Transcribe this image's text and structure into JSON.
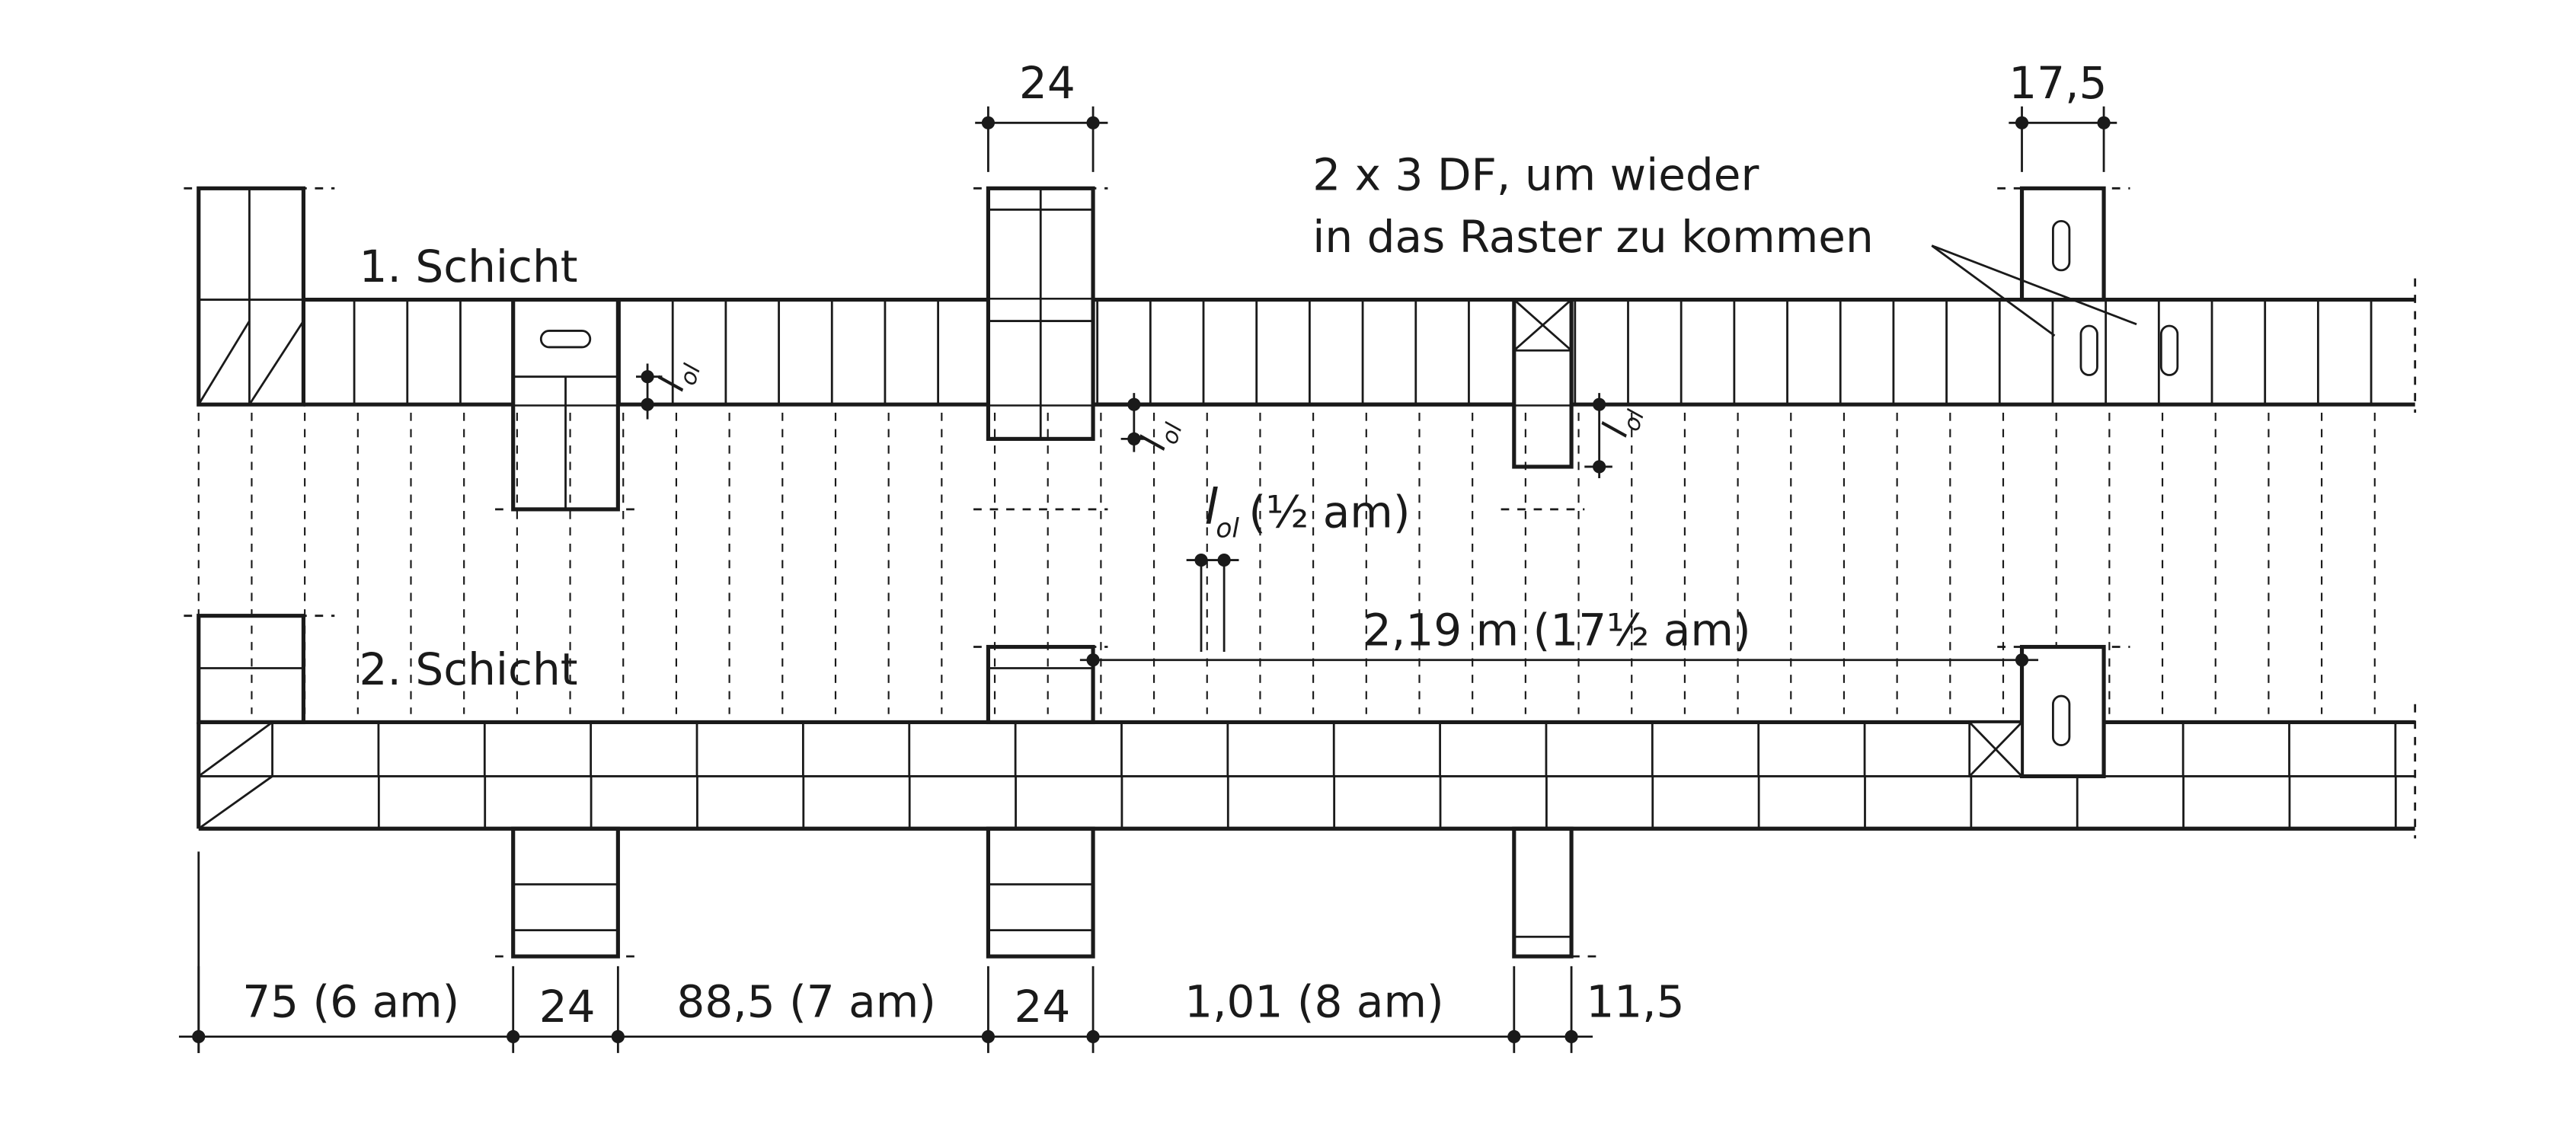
{
  "labels": {
    "layer1": "1. Schicht",
    "layer2": "2. Schicht",
    "note_line1": "2 x 3 DF, um wieder",
    "note_line2": "in das Raster zu kommen",
    "dim_top_pier": "24",
    "dim_top_right": "17,5",
    "lol_symbol": "l",
    "lol_sub": "ol",
    "lol_half": "(½ am)",
    "dim_span": "2,19 m (17½ am)"
  },
  "bottom_dims": [
    "75 (6 am)",
    "24",
    "88,5 (7 am)",
    "24",
    "1,01 (8 am)",
    "11,5"
  ],
  "colors": {
    "line": "#1a1a1a",
    "background": "#ffffff"
  }
}
